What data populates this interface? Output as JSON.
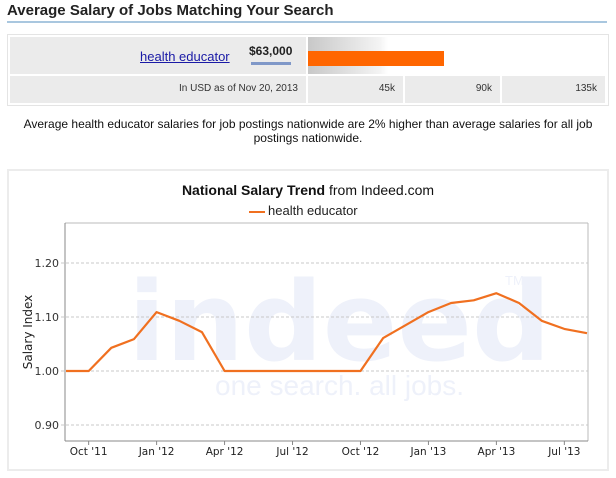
{
  "header": {
    "title": "Average Salary of Jobs Matching Your Search"
  },
  "salary_box": {
    "job_title": "health educator",
    "salary": "$63,000",
    "note": "In USD as of Nov 20, 2013",
    "scale_ticks": [
      "45k",
      "90k",
      "135k"
    ],
    "bar_color": "#ff6600"
  },
  "description": "Average health educator salaries for job postings nationwide are 2% higher than average salaries for all job postings nationwide.",
  "chart": {
    "title_bold": "National Salary Trend",
    "title_rest": " from Indeed.com",
    "legend_label": "health educator",
    "ylabel": "Salary Index",
    "watermark_logo": "indeed",
    "watermark_tm": "TM",
    "watermark_tagline": "one search. all jobs."
  },
  "chart_data": {
    "type": "line",
    "title": "National Salary Trend from Indeed.com",
    "xlabel": "",
    "ylabel": "Salary Index",
    "ylim": [
      0.87,
      1.26
    ],
    "yticks": [
      "0.90",
      "1.00",
      "1.10",
      "1.20"
    ],
    "xtick_labels": [
      "Oct '11",
      "Jan '12",
      "Apr '12",
      "Jul '12",
      "Oct '12",
      "Jan '13",
      "Apr '13",
      "Jul '13"
    ],
    "grid": true,
    "legend_position": "top",
    "x": [
      "Sep '11",
      "Oct '11",
      "Nov '11",
      "Dec '11",
      "Jan '12",
      "Feb '12",
      "Mar '12",
      "Apr '12",
      "May '12",
      "Jun '12",
      "Jul '12",
      "Aug '12",
      "Sep '12",
      "Oct '12",
      "Nov '12",
      "Dec '12",
      "Jan '13",
      "Feb '13",
      "Mar '13",
      "Apr '13",
      "May '13",
      "Jun '13",
      "Jul '13",
      "Aug '13"
    ],
    "series": [
      {
        "name": "health educator",
        "color": "#f07020",
        "values": [
          1.0,
          1.0,
          1.043,
          1.059,
          1.109,
          1.093,
          1.072,
          1.0,
          1.0,
          1.0,
          1.0,
          1.0,
          1.0,
          1.0,
          1.061,
          1.085,
          1.109,
          1.126,
          1.131,
          1.144,
          1.126,
          1.093,
          1.078,
          1.07
        ]
      }
    ]
  }
}
